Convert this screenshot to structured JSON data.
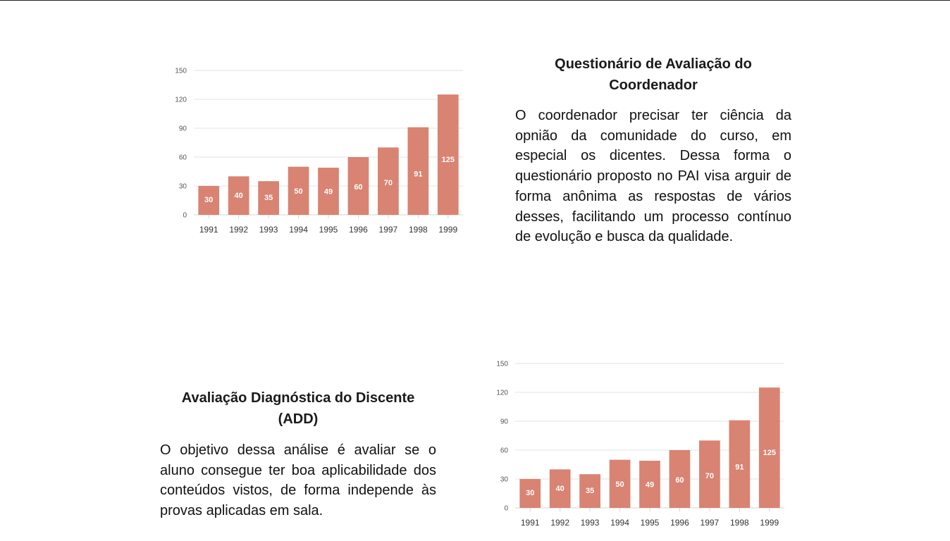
{
  "colors": {
    "bar": "#d98373",
    "bar_label": "#ffffff",
    "grid": "#e3e3e3",
    "axis": "#d4d4d4",
    "tick_text": "#555555"
  },
  "section_coordenador": {
    "title": "Questionário de Avaliação do Coordenador",
    "body": "O coordenador precisar ter ciência da opnião da comunidade do curso, em especial os dicentes. Dessa forma o questionário proposto no PAI visa arguir de forma anônima as respostas de vários desses, facilitando um processo contínuo de evolução e busca da qualidade."
  },
  "section_add": {
    "title": "Avaliação Diagnóstica do Discente (ADD)",
    "body": "O objetivo dessa análise é avaliar se o aluno consegue ter boa aplicabilidade dos conteúdos vistos, de forma independe às provas aplicadas em sala."
  },
  "chart_data": [
    {
      "type": "bar",
      "categories": [
        "1991",
        "1992",
        "1993",
        "1994",
        "1995",
        "1996",
        "1997",
        "1998",
        "1999"
      ],
      "values": [
        30,
        40,
        35,
        50,
        49,
        60,
        70,
        91,
        125
      ],
      "title": "",
      "xlabel": "",
      "ylabel": "",
      "ylim": [
        0,
        150
      ],
      "yticks": [
        0,
        30,
        60,
        90,
        120,
        150
      ],
      "data_labels": true,
      "grid": true,
      "legend": "none"
    },
    {
      "type": "bar",
      "categories": [
        "1991",
        "1992",
        "1993",
        "1994",
        "1995",
        "1996",
        "1997",
        "1998",
        "1999"
      ],
      "values": [
        30,
        40,
        35,
        50,
        49,
        60,
        70,
        91,
        125
      ],
      "title": "",
      "xlabel": "",
      "ylabel": "",
      "ylim": [
        0,
        150
      ],
      "yticks": [
        0,
        30,
        60,
        90,
        120,
        150
      ],
      "data_labels": true,
      "grid": true,
      "legend": "none"
    }
  ]
}
